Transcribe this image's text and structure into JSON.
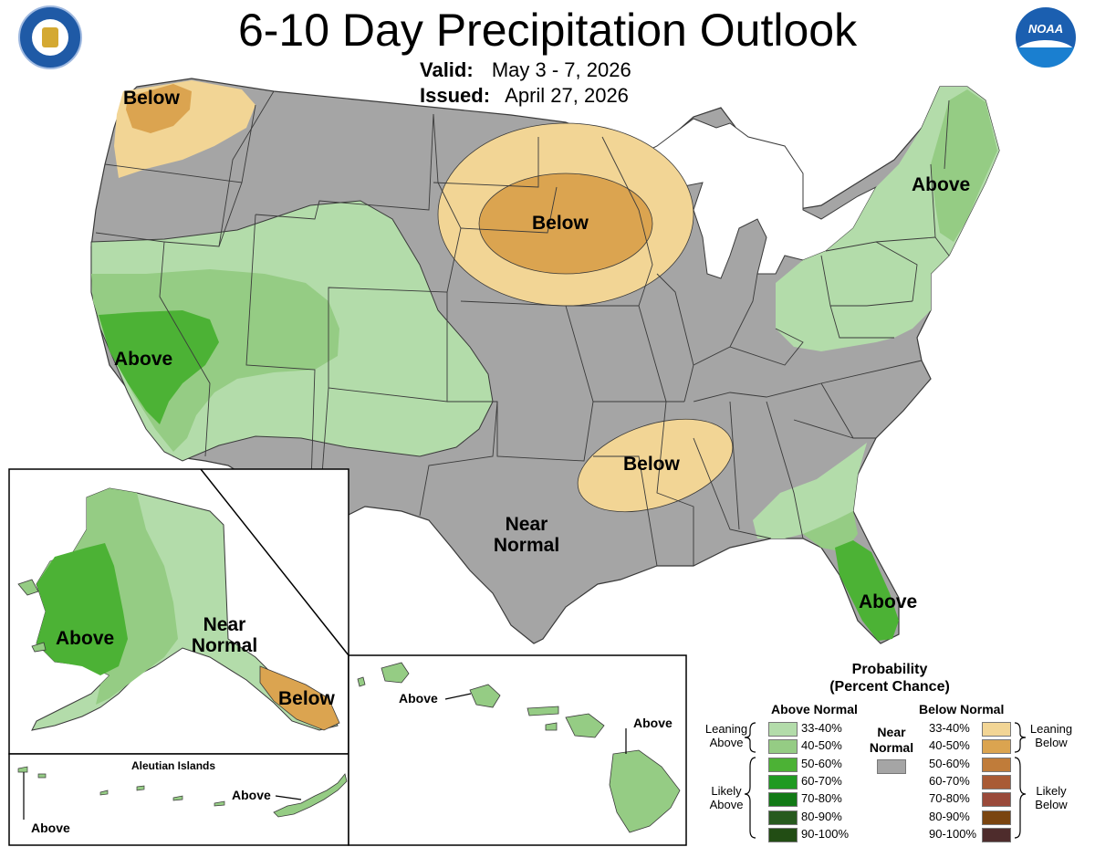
{
  "header": {
    "title": "6-10 Day Precipitation Outlook",
    "valid_label": "Valid:",
    "valid_value": "May 3 - 7, 2026",
    "issued_label": "Issued:",
    "issued_value": "April 27, 2026"
  },
  "logos": {
    "left_icon": "department-of-commerce-seal",
    "right_icon": "noaa-logo",
    "right_text": "NOAA"
  },
  "colors": {
    "near_normal": "#a5a5a5",
    "above_33_40": "#b3dcaa",
    "above_40_50": "#95cc84",
    "above_50_60": "#4cb235",
    "above_60_70": "#1f9a22",
    "above_70_80": "#127a16",
    "above_80_90": "#275a1e",
    "above_90_100": "#224d14",
    "below_33_40": "#f2d595",
    "below_40_50": "#dba450",
    "below_50_60": "#c07c3a",
    "below_60_70": "#a95b35",
    "below_70_80": "#9a4a3a",
    "below_80_90": "#7a4510",
    "below_90_100": "#4e2c2c",
    "border": "#3a3a3a"
  },
  "map_labels": {
    "nw_below": "Below",
    "nplains_below": "Below",
    "ne_above": "Above",
    "ca_above": "Above",
    "south_below": "Below",
    "near_normal_line1": "Near",
    "near_normal_line2": "Normal",
    "fl_above": "Above"
  },
  "alaska": {
    "above": "Above",
    "near_line1": "Near",
    "near_line2": "Normal",
    "below": "Below"
  },
  "aleutians": {
    "title": "Aleutian Islands",
    "above_right": "Above",
    "above_left": "Above"
  },
  "hawaii": {
    "above_left": "Above",
    "above_right": "Above"
  },
  "legend": {
    "title_line1": "Probability",
    "title_line2": "(Percent Chance)",
    "above_header": "Above Normal",
    "below_header": "Below Normal",
    "near_line1": "Near",
    "near_line2": "Normal",
    "leaning_above_1": "Leaning",
    "leaning_above_2": "Above",
    "likely_above_1": "Likely",
    "likely_above_2": "Above",
    "leaning_below_1": "Leaning",
    "leaning_below_2": "Below",
    "likely_below_1": "Likely",
    "likely_below_2": "Below",
    "above_ranges": [
      "33-40%",
      "40-50%",
      "50-60%",
      "60-70%",
      "70-80%",
      "80-90%",
      "90-100%"
    ],
    "below_ranges": [
      "33-40%",
      "40-50%",
      "50-60%",
      "60-70%",
      "70-80%",
      "80-90%",
      "90-100%"
    ]
  }
}
